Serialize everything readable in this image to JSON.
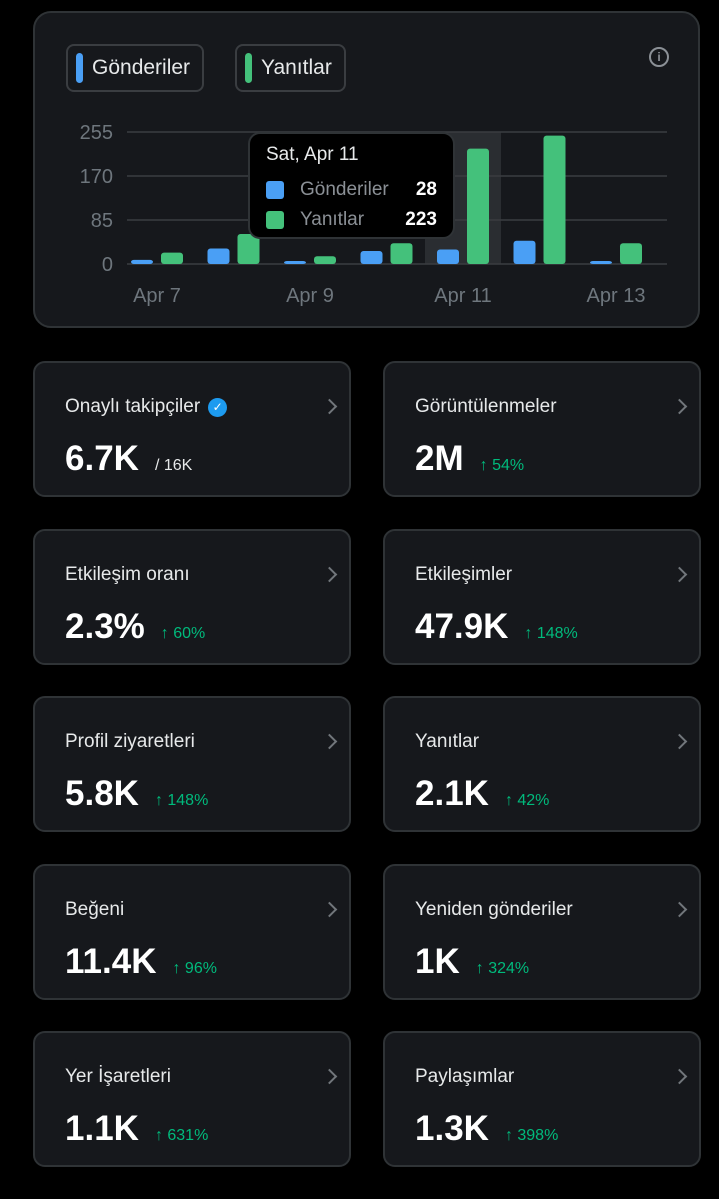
{
  "legend": [
    {
      "label": "Gönderiler",
      "color": "#4a9ff5"
    },
    {
      "label": "Yanıtlar",
      "color": "#44c17b"
    }
  ],
  "chart_data": {
    "type": "bar",
    "categories": [
      "Apr 7",
      "Apr 8",
      "Apr 9",
      "Apr 10",
      "Apr 11",
      "Apr 12",
      "Apr 13"
    ],
    "series": [
      {
        "name": "Gönderiler",
        "values": [
          8,
          30,
          5,
          25,
          28,
          45,
          5
        ],
        "color": "#4a9ff5"
      },
      {
        "name": "Yanıtlar",
        "values": [
          22,
          58,
          15,
          40,
          223,
          248,
          40
        ],
        "color": "#44c17b"
      }
    ],
    "x_tick_labels": [
      "Apr 7",
      "",
      "Apr 9",
      "",
      "Apr 11",
      "",
      "Apr 13"
    ],
    "y_ticks": [
      0,
      85,
      170,
      255
    ],
    "ylim": [
      0,
      255
    ],
    "highlighted_category": "Apr 11",
    "grid": true
  },
  "tooltip": {
    "title": "Sat, Apr 11",
    "rows": [
      {
        "name": "Gönderiler",
        "value": "28",
        "color": "#4a9ff5"
      },
      {
        "name": "Yanıtlar",
        "value": "223",
        "color": "#44c17b"
      }
    ]
  },
  "metrics": [
    {
      "label": "Onaylı takipçiler",
      "value": "6.7K",
      "total": "/ 16K",
      "verified": true
    },
    {
      "label": "Görüntülenmeler",
      "value": "2M",
      "change": "↑ 54%"
    },
    {
      "label": "Etkileşim oranı",
      "value": "2.3%",
      "change": "↑ 60%"
    },
    {
      "label": "Etkileşimler",
      "value": "47.9K",
      "change": "↑ 148%"
    },
    {
      "label": "Profil ziyaretleri",
      "value": "5.8K",
      "change": "↑ 148%"
    },
    {
      "label": "Yanıtlar",
      "value": "2.1K",
      "change": "↑ 42%"
    },
    {
      "label": "Beğeni",
      "value": "11.4K",
      "change": "↑ 96%"
    },
    {
      "label": "Yeniden gönderiler",
      "value": "1K",
      "change": "↑ 324%"
    },
    {
      "label": "Yer İşaretleri",
      "value": "1.1K",
      "change": "↑ 631%"
    },
    {
      "label": "Paylaşımlar",
      "value": "1.3K",
      "change": "↑ 398%"
    }
  ]
}
